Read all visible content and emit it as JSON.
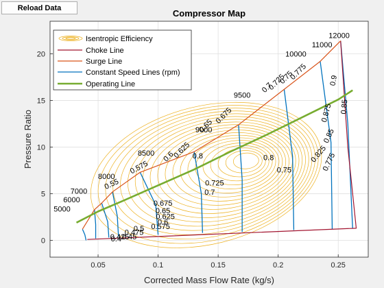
{
  "toolbar": {
    "reload_label": "Reload Data"
  },
  "colors": {
    "efficiency": "#edb120",
    "choke": "#a2142f",
    "surge": "#d95319",
    "speed": "#0072bd",
    "operating": "#77ac30"
  },
  "chart_data": {
    "type": "line",
    "title": "Compressor Map",
    "xlabel": "Corrected Mass Flow Rate (kg/s)",
    "ylabel": "Pressure Ratio",
    "xlim": [
      0.01,
      0.275
    ],
    "ylim": [
      -1.8,
      23.5
    ],
    "xticks": [
      0.05,
      0.1,
      0.15,
      0.2,
      0.25
    ],
    "xtick_labels": [
      "0.05",
      "0.1",
      "0.15",
      "0.2",
      "0.25"
    ],
    "yticks": [
      0,
      5,
      10,
      15,
      20
    ],
    "ytick_labels": [
      "0",
      "5",
      "10",
      "15",
      "20"
    ],
    "grid": true,
    "legend": {
      "position": "top-left",
      "entries": [
        "Isentropic Efficiency",
        "Choke Line",
        "Surge Line",
        "Constant Speed Lines (rpm)",
        "Operating Line"
      ]
    },
    "series": [
      {
        "name": "Choke Line",
        "x": [
          0.041,
          0.265,
          0.258,
          0.252
        ],
        "y": [
          0.1,
          1.3,
          10,
          21.4
        ]
      },
      {
        "name": "Surge Line",
        "x": [
          0.037,
          0.047,
          0.053,
          0.062,
          0.085,
          0.13,
          0.167,
          0.205,
          0.235,
          0.252
        ],
        "y": [
          1.2,
          3.3,
          4.0,
          5.2,
          7.3,
          9.5,
          12.4,
          16.2,
          19.2,
          21.4
        ]
      },
      {
        "name": "Operating Line",
        "x": [
          0.032,
          0.05,
          0.07,
          0.1,
          0.13,
          0.16,
          0.19,
          0.22,
          0.25,
          0.262
        ],
        "y": [
          1.9,
          3.1,
          4.2,
          5.9,
          7.6,
          9.5,
          11.3,
          13.2,
          15.1,
          16.1
        ]
      }
    ],
    "speed_lines": [
      {
        "label": "5000",
        "x": [
          0.037,
          0.039,
          0.04
        ],
        "y": [
          1.2,
          0.6,
          0.0
        ]
      },
      {
        "label": "6000",
        "x": [
          0.047,
          0.048,
          0.048
        ],
        "y": [
          3.3,
          1.7,
          0.2
        ]
      },
      {
        "label": "7000",
        "x": [
          0.053,
          0.058,
          0.059
        ],
        "y": [
          4.0,
          2.0,
          0.3
        ]
      },
      {
        "label": "8000",
        "x": [
          0.062,
          0.066,
          0.067
        ],
        "y": [
          5.2,
          2.6,
          0.4
        ]
      },
      {
        "label": "8500",
        "x": [
          0.085,
          0.098,
          0.1
        ],
        "y": [
          7.3,
          3.8,
          0.6
        ]
      },
      {
        "label": "9000",
        "x": [
          0.13,
          0.136,
          0.137
        ],
        "y": [
          9.5,
          5.0,
          0.8
        ]
      },
      {
        "label": "9500",
        "x": [
          0.167,
          0.17,
          0.17
        ],
        "y": [
          12.4,
          6.5,
          0.9
        ]
      },
      {
        "label": "10000",
        "x": [
          0.205,
          0.212,
          0.213
        ],
        "y": [
          16.2,
          9.0,
          1.1
        ]
      },
      {
        "label": "11000",
        "x": [
          0.235,
          0.244,
          0.245
        ],
        "y": [
          19.2,
          10.5,
          1.2
        ]
      },
      {
        "label": "12000",
        "x": [
          0.252,
          0.258,
          0.262
        ],
        "y": [
          21.4,
          12.5,
          1.3
        ]
      }
    ],
    "speed_label_positions": [
      {
        "label": "5000",
        "x": 0.013,
        "y": 3.1
      },
      {
        "label": "6000",
        "x": 0.021,
        "y": 4.1
      },
      {
        "label": "7000",
        "x": 0.027,
        "y": 5.0
      },
      {
        "label": "8000",
        "x": 0.05,
        "y": 6.6
      },
      {
        "label": "8500",
        "x": 0.083,
        "y": 9.1
      },
      {
        "label": "9000",
        "x": 0.131,
        "y": 11.6
      },
      {
        "label": "9500",
        "x": 0.163,
        "y": 15.3
      },
      {
        "label": "10000",
        "x": 0.206,
        "y": 19.7
      },
      {
        "label": "11000",
        "x": 0.228,
        "y": 20.7
      },
      {
        "label": "12000",
        "x": 0.242,
        "y": 21.7
      }
    ],
    "efficiency_levels": [
      "0.425",
      "0.45",
      "0.475",
      "0.5",
      "0.525",
      "0.55",
      "0.575",
      "0.6",
      "0.625",
      "0.65",
      "0.675",
      "0.7",
      "0.725",
      "0.75",
      "0.775",
      "0.8",
      "0.825",
      "0.85",
      "0.875",
      "0.9"
    ],
    "efficiency_labels": [
      {
        "text": "0.55",
        "x": 0.062,
        "y": 5.8,
        "angle": -25
      },
      {
        "text": "0.575",
        "x": 0.085,
        "y": 7.6,
        "angle": -28
      },
      {
        "text": "0.6",
        "x": 0.11,
        "y": 8.8,
        "angle": -45
      },
      {
        "text": "0.625",
        "x": 0.121,
        "y": 9.5,
        "angle": -45
      },
      {
        "text": "0.65",
        "x": 0.141,
        "y": 12.1,
        "angle": -45
      },
      {
        "text": "0.675",
        "x": 0.156,
        "y": 13.2,
        "angle": -45
      },
      {
        "text": "0.7",
        "x": 0.192,
        "y": 16.2,
        "angle": -45
      },
      {
        "text": "0.725",
        "x": 0.2,
        "y": 16.8,
        "angle": -45
      },
      {
        "text": "0.75",
        "x": 0.208,
        "y": 17.3,
        "angle": -45
      },
      {
        "text": "0.775",
        "x": 0.218,
        "y": 17.9,
        "angle": -45
      },
      {
        "text": "0.8",
        "x": 0.133,
        "y": 8.8,
        "angle": 0
      },
      {
        "text": "0.8",
        "x": 0.192,
        "y": 8.6,
        "angle": 0
      },
      {
        "text": "0.75",
        "x": 0.205,
        "y": 7.3,
        "angle": 0
      },
      {
        "text": "0.725",
        "x": 0.147,
        "y": 5.9,
        "angle": 0
      },
      {
        "text": "0.7",
        "x": 0.143,
        "y": 4.9,
        "angle": 0
      },
      {
        "text": "0.675",
        "x": 0.104,
        "y": 3.7,
        "angle": 0
      },
      {
        "text": "0.65",
        "x": 0.104,
        "y": 2.9,
        "angle": 0
      },
      {
        "text": "0.625",
        "x": 0.106,
        "y": 2.3,
        "angle": 0
      },
      {
        "text": "0.6",
        "x": 0.104,
        "y": 1.7,
        "angle": 0
      },
      {
        "text": "0.575",
        "x": 0.102,
        "y": 1.2,
        "angle": 0
      },
      {
        "text": "0.5",
        "x": 0.084,
        "y": 1.0,
        "angle": 0
      },
      {
        "text": "0.475",
        "x": 0.08,
        "y": 0.6,
        "angle": 0
      },
      {
        "text": "0.45",
        "x": 0.076,
        "y": 0.1,
        "angle": 0
      },
      {
        "text": "0.425",
        "x": 0.068,
        "y": 0.1,
        "angle": 0
      },
      {
        "text": "0.4",
        "x": 0.065,
        "y": -0.1,
        "angle": 0
      },
      {
        "text": "0.825",
        "x": 0.235,
        "y": 9.1,
        "angle": -50
      },
      {
        "text": "0.85",
        "x": 0.244,
        "y": 11.1,
        "angle": -65
      },
      {
        "text": "0.875",
        "x": 0.242,
        "y": 13.6,
        "angle": -75
      },
      {
        "text": "0.9",
        "x": 0.248,
        "y": 17.1,
        "angle": -80
      },
      {
        "text": "0.85",
        "x": 0.257,
        "y": 14.3,
        "angle": -85
      },
      {
        "text": "0.775",
        "x": 0.244,
        "y": 8.3,
        "angle": -65
      }
    ]
  }
}
